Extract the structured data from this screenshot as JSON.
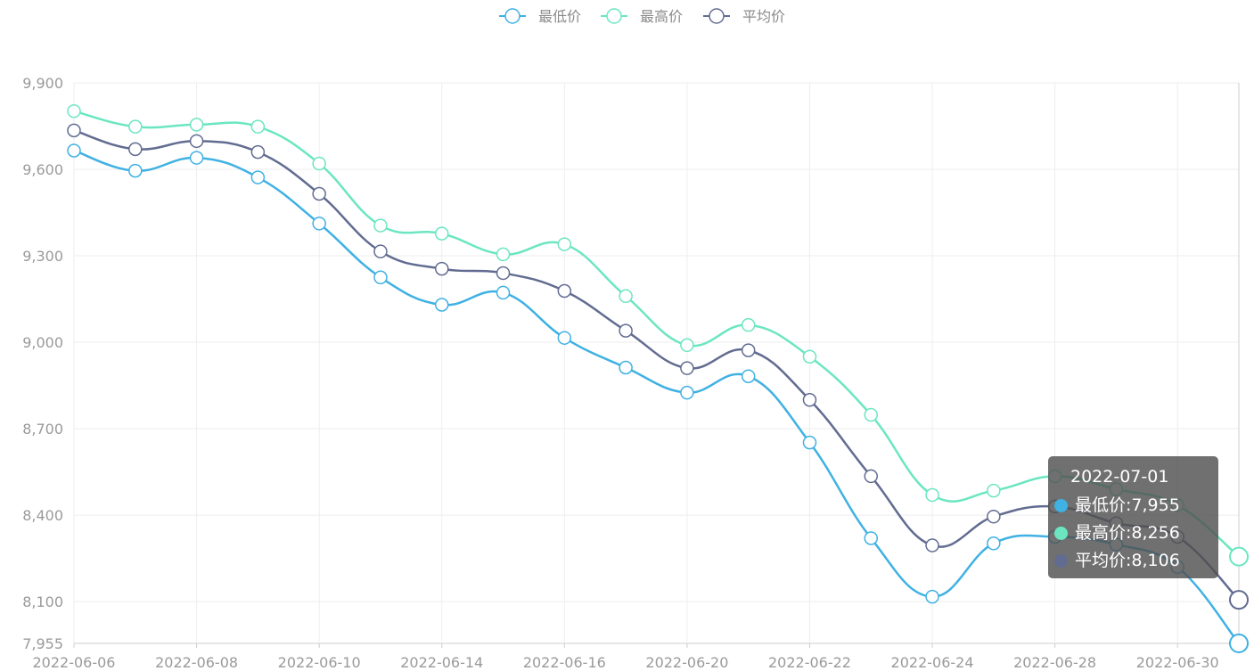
{
  "legend": [
    {
      "label": "最低价",
      "color": "#3fb1e3"
    },
    {
      "label": "最高价",
      "color": "#6be6c1"
    },
    {
      "label": "平均价",
      "color": "#626c91"
    }
  ],
  "tooltip": {
    "title": "2022-07-01",
    "rows": [
      {
        "name": "最低价",
        "value": "7,955",
        "color": "#3fb1e3"
      },
      {
        "name": "最高价",
        "value": "8,256",
        "color": "#6be6c1"
      },
      {
        "name": "平均价",
        "value": "8,106",
        "color": "#626c91"
      }
    ]
  },
  "chart_data": {
    "type": "line",
    "smooth": true,
    "grid": true,
    "legend_position": "top-center",
    "ylim": [
      7955,
      9900
    ],
    "y_ticks": [
      "7,955",
      "8,100",
      "8,400",
      "8,700",
      "9,000",
      "9,300",
      "9,600",
      "9,900"
    ],
    "y_tick_values": [
      7955,
      8100,
      8400,
      8700,
      9000,
      9300,
      9600,
      9900
    ],
    "x_tick_labels": [
      "2022-06-06",
      "2022-06-08",
      "2022-06-10",
      "2022-06-14",
      "2022-06-16",
      "2022-06-20",
      "2022-06-22",
      "2022-06-24",
      "2022-06-28",
      "2022-06-30"
    ],
    "x_tick_every": 2,
    "n_points": 20,
    "series": [
      {
        "name": "最低价",
        "color": "#3fb1e3",
        "values": [
          9665,
          9595,
          9640,
          9572,
          9412,
          9225,
          9130,
          9172,
          9015,
          8912,
          8825,
          8882,
          8652,
          8320,
          8117,
          8302,
          8325,
          8298,
          8220,
          7955
        ]
      },
      {
        "name": "最高价",
        "color": "#6be6c1",
        "values": [
          9802,
          9748,
          9755,
          9748,
          9620,
          9405,
          9377,
          9305,
          9340,
          9160,
          8990,
          9060,
          8950,
          8748,
          8470,
          8485,
          8535,
          8490,
          8435,
          8256
        ]
      },
      {
        "name": "平均价",
        "color": "#626c91",
        "values": [
          9735,
          9670,
          9698,
          9660,
          9515,
          9315,
          9255,
          9240,
          9178,
          9040,
          8910,
          8972,
          8800,
          8535,
          8295,
          8395,
          8430,
          8372,
          8325,
          8106
        ]
      }
    ]
  }
}
